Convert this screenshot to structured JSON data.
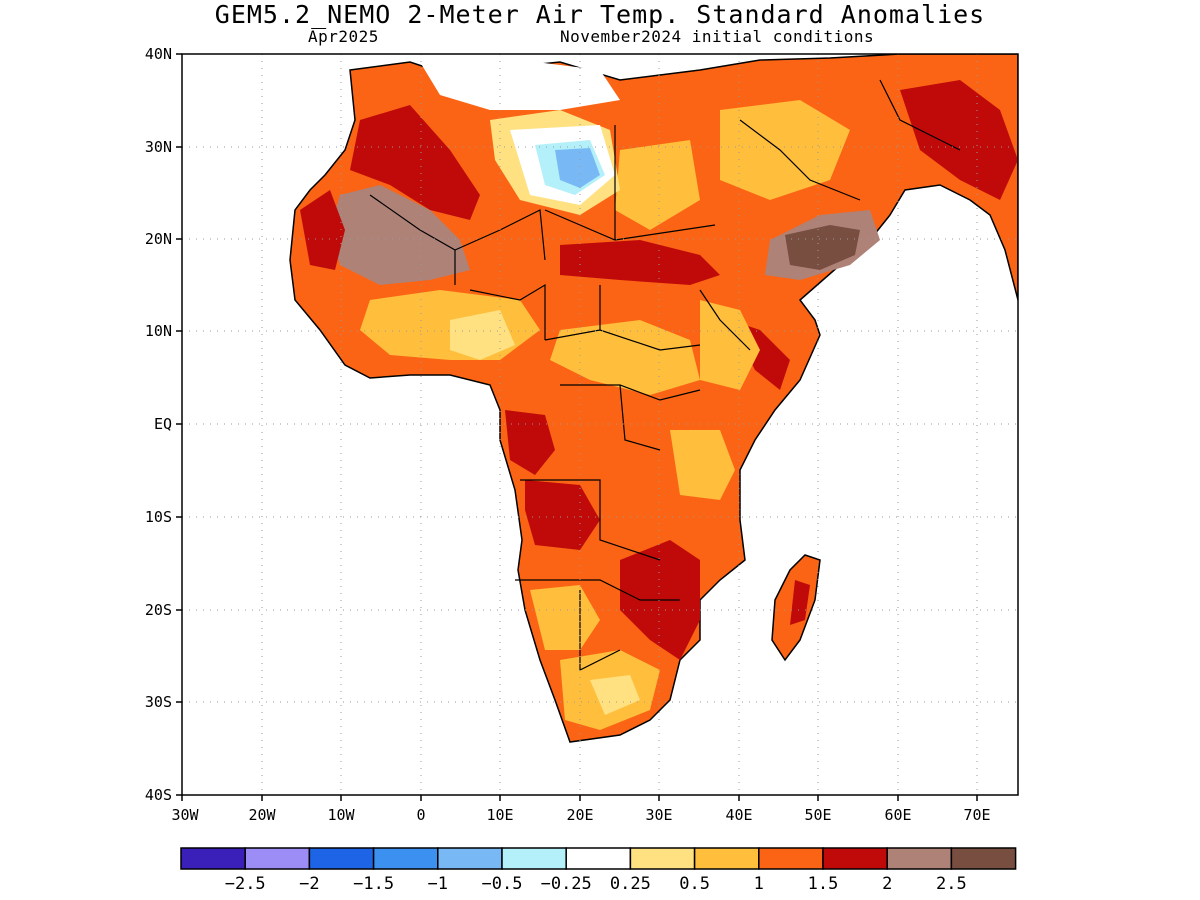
{
  "title": "GEM5.2_NEMO 2-Meter Air Temp. Standard Anomalies",
  "subtitle_left": "Apr2025",
  "subtitle_right": "November2024 initial conditions",
  "map": {
    "lon_range": [
      -30,
      75
    ],
    "lat_range": [
      -40,
      40
    ],
    "lat_ticks": [
      {
        "value": 40,
        "label": "40N"
      },
      {
        "value": 30,
        "label": "30N"
      },
      {
        "value": 20,
        "label": "20N"
      },
      {
        "value": 10,
        "label": "10N"
      },
      {
        "value": 0,
        "label": "EQ"
      },
      {
        "value": -10,
        "label": "10S"
      },
      {
        "value": -20,
        "label": "20S"
      },
      {
        "value": -30,
        "label": "30S"
      },
      {
        "value": -40,
        "label": "40S"
      }
    ],
    "lon_ticks": [
      {
        "value": -30,
        "label": "30W"
      },
      {
        "value": -20,
        "label": "20W"
      },
      {
        "value": -10,
        "label": "10W"
      },
      {
        "value": 0,
        "label": "0"
      },
      {
        "value": 10,
        "label": "10E"
      },
      {
        "value": 20,
        "label": "20E"
      },
      {
        "value": 30,
        "label": "30E"
      },
      {
        "value": 40,
        "label": "40E"
      },
      {
        "value": 50,
        "label": "50E"
      },
      {
        "value": 60,
        "label": "60E"
      },
      {
        "value": 70,
        "label": "70E"
      }
    ],
    "grid": "dotted"
  },
  "colorbar": {
    "colors": [
      "#3a1fb8",
      "#9c8cf5",
      "#1e64e6",
      "#3c91f0",
      "#78b9f5",
      "#b4f0fa",
      "#ffffff",
      "#ffe182",
      "#ffbe3c",
      "#fa6414",
      "#c00a0a",
      "#af8278",
      "#784e41"
    ],
    "labels": [
      "-2.5",
      "-2",
      "-1.5",
      "-1",
      "-0.5",
      "-0.25",
      "0.25",
      "0.5",
      "1",
      "1.5",
      "2",
      "2.5"
    ]
  }
}
